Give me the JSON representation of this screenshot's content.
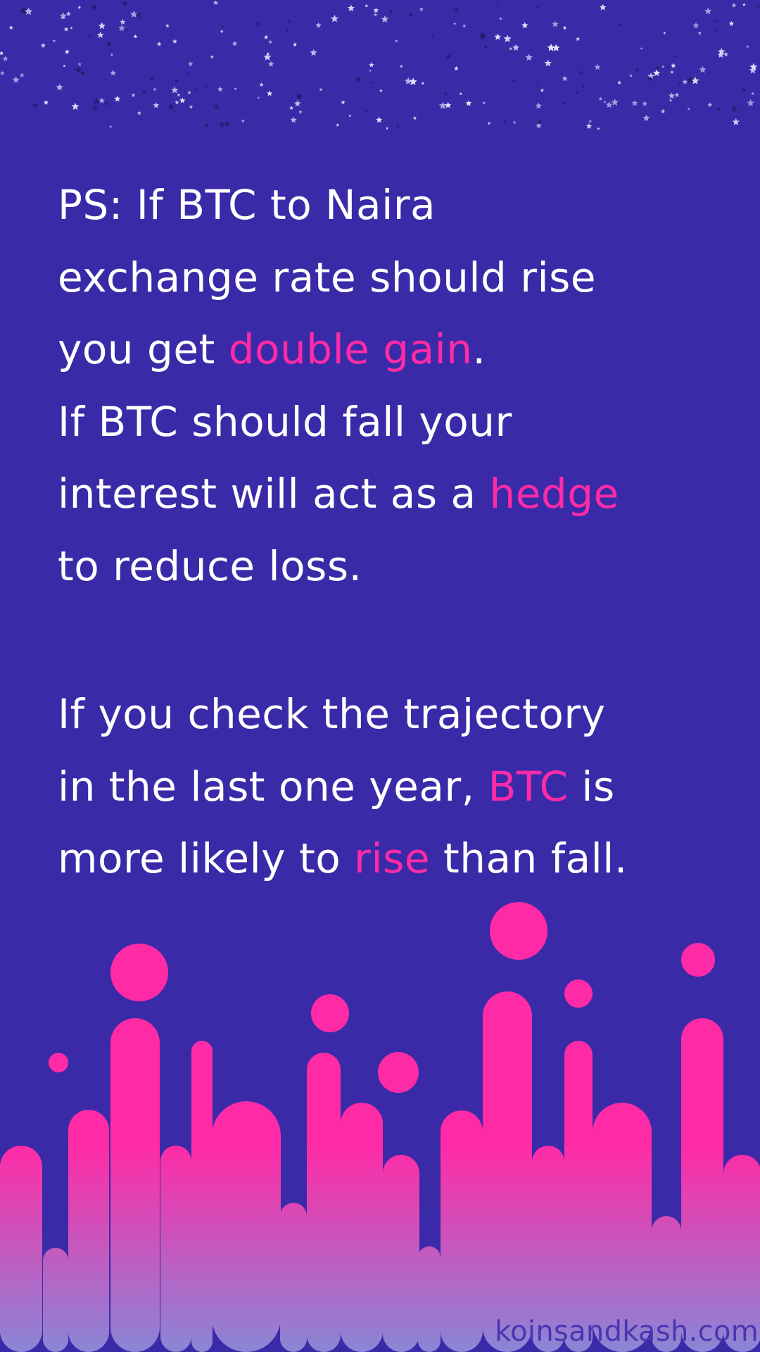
{
  "paragraph1": {
    "line1": "PS: If BTC to Naira",
    "line2": "exchange rate should rise",
    "line3_pre": "you get ",
    "line3_hl": "double gain",
    "line3_post": ".",
    "line4": "If BTC should fall your",
    "line5_pre": "interest will act as a ",
    "line5_hl": "hedge",
    "line6": "to reduce loss."
  },
  "paragraph2": {
    "line1": "If you check the trajectory",
    "line2_pre": "in the last one year, ",
    "line2_hl": "BTC",
    "line2_post": " is",
    "line3_pre": "more likely to ",
    "line3_hl": "rise",
    "line3_post": " than fall."
  },
  "watermark": "koinsandkash.com",
  "colors": {
    "background": "#3a2aa8",
    "text": "#ffffff",
    "highlight": "#ff2ba6",
    "gradient_bottom": "#8a86d6"
  }
}
